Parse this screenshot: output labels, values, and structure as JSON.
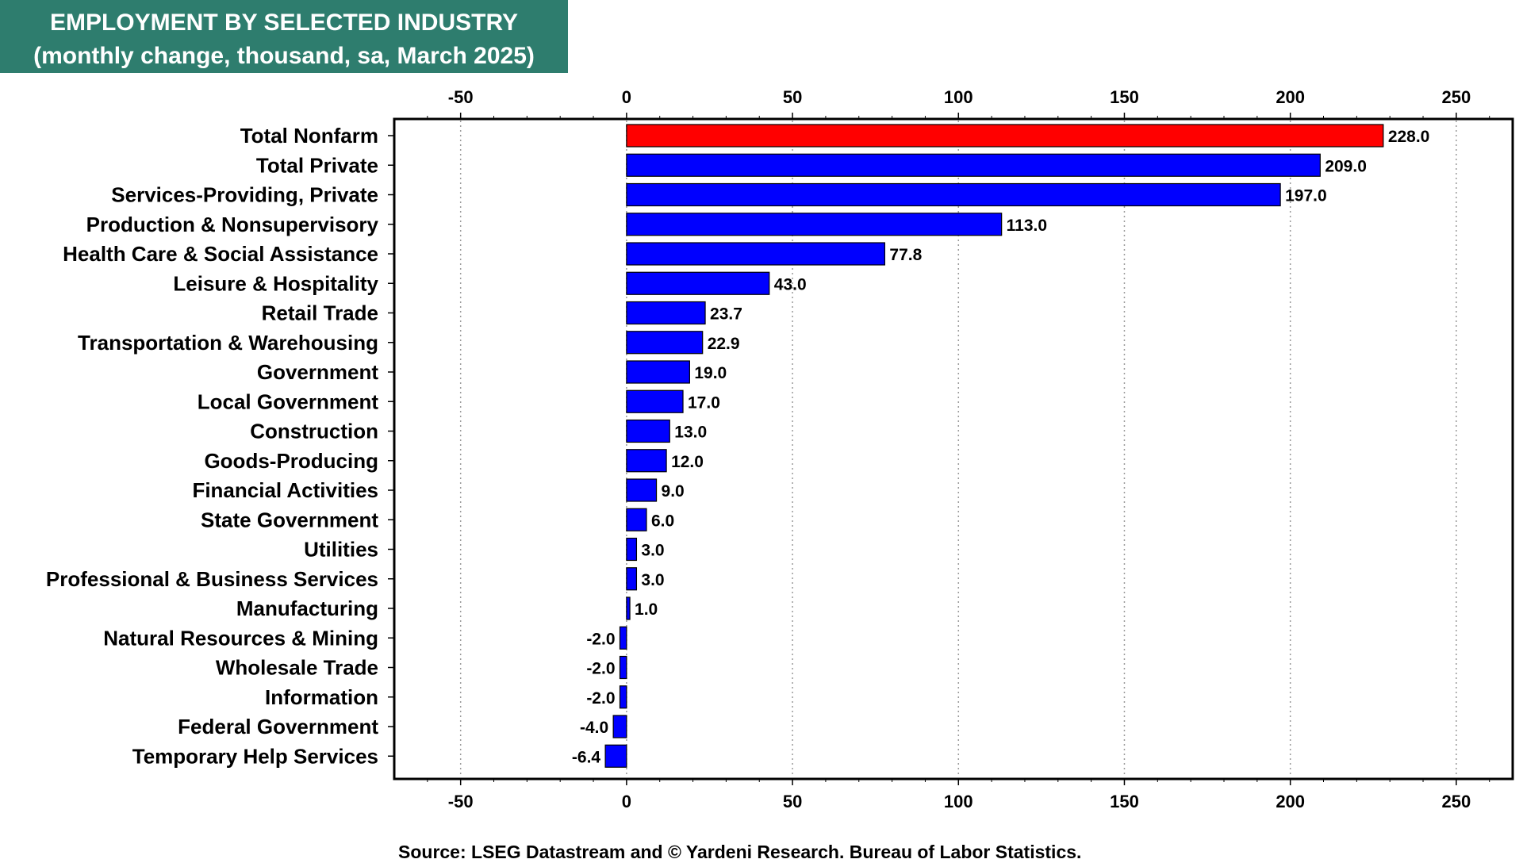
{
  "title": "EMPLOYMENT BY SELECTED INDUSTRY",
  "subtitle": "(monthly change, thousand, sa, March 2025)",
  "source": "Source: LSEG Datastream and © Yardeni Research. Bureau of Labor Statistics.",
  "colors": {
    "title_bg": "#2E7D6E",
    "highlight_bar": "#FF0000",
    "bar": "#0000FF"
  },
  "chart_data": {
    "type": "bar",
    "orientation": "horizontal",
    "title": "EMPLOYMENT BY SELECTED INDUSTRY",
    "subtitle": "(monthly change, thousand, sa, March 2025)",
    "xlabel": "",
    "ylabel": "",
    "xlim": [
      -70,
      267
    ],
    "xticks": [
      -50,
      0,
      50,
      100,
      150,
      200,
      250
    ],
    "tick_labels": [
      "-50",
      "0",
      "50",
      "100",
      "150",
      "200",
      "250"
    ],
    "grid": "vertical dotted",
    "categories": [
      "Total Nonfarm",
      "Total Private",
      "Services-Providing, Private",
      "Production & Nonsupervisory",
      "Health Care & Social Assistance",
      "Leisure & Hospitality",
      "Retail Trade",
      "Transportation & Warehousing",
      "Government",
      "Local Government",
      "Construction",
      "Goods-Producing",
      "Financial Activities",
      "State Government",
      "Utilities",
      "Professional & Business Services",
      "Manufacturing",
      "Natural Resources & Mining",
      "Wholesale Trade",
      "Information",
      "Federal Government",
      "Temporary Help Services"
    ],
    "values": [
      228.0,
      209.0,
      197.0,
      113.0,
      77.8,
      43.0,
      23.7,
      22.9,
      19.0,
      17.0,
      13.0,
      12.0,
      9.0,
      6.0,
      3.0,
      3.0,
      1.0,
      -2.0,
      -2.0,
      -2.0,
      -4.0,
      -6.4
    ],
    "value_labels": [
      "228.0",
      "209.0",
      "197.0",
      "113.0",
      "77.8",
      "43.0",
      "23.7",
      "22.9",
      "19.0",
      "17.0",
      "13.0",
      "12.0",
      "9.0",
      "6.0",
      "3.0",
      "3.0",
      "1.0",
      "-2.0",
      "-2.0",
      "-2.0",
      "-4.0",
      "-6.4"
    ],
    "highlight_index": 0
  }
}
